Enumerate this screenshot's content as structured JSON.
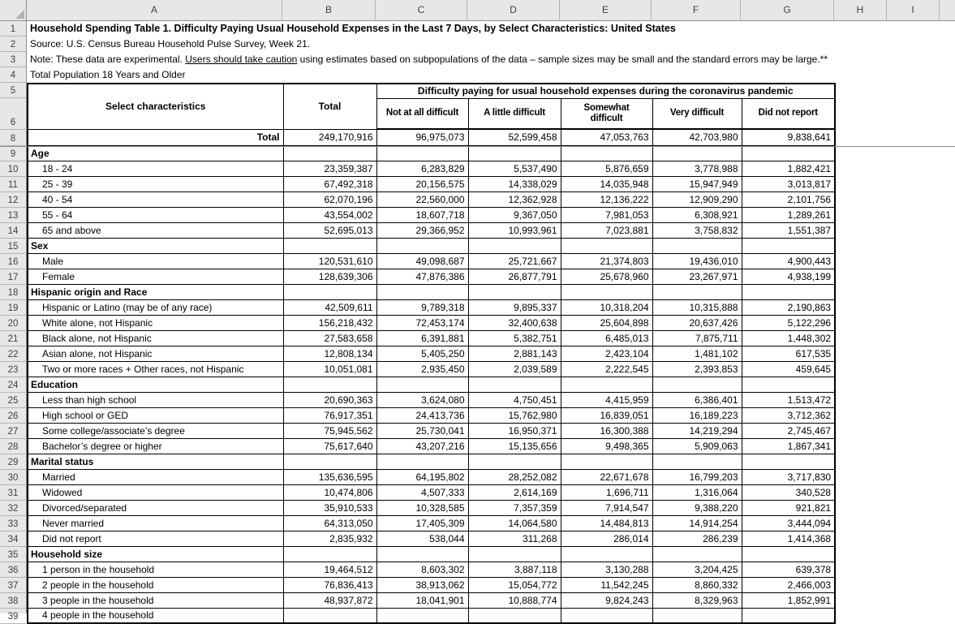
{
  "grid": {
    "columns": [
      "A",
      "B",
      "C",
      "D",
      "E",
      "F",
      "G",
      "H",
      "I"
    ],
    "row_numbers": [
      "1",
      "2",
      "3",
      "4",
      "5",
      "6",
      "8",
      "9",
      "10",
      "11",
      "12",
      "13",
      "14",
      "15",
      "16",
      "17",
      "18",
      "19",
      "20",
      "21",
      "22",
      "23",
      "24",
      "25",
      "26",
      "27",
      "28",
      "29",
      "30",
      "31",
      "32",
      "33",
      "34",
      "35",
      "36",
      "37",
      "38",
      "39"
    ]
  },
  "titles": {
    "line1": "Household Spending Table 1. Difficulty Paying Usual Household Expenses in the Last 7 Days, by Select Characteristics: United States",
    "line2": "Source: U.S. Census Bureau Household Pulse Survey, Week 21.",
    "note_prefix": "Note: These data are experimental. ",
    "note_underlined": "Users should take caution",
    "note_suffix": " using estimates based on subpopulations of the data – sample sizes may be small and the standard errors may be large.**",
    "line4": "Total Population 18 Years and Older"
  },
  "table": {
    "header": {
      "select_characteristics": "Select characteristics",
      "total": "Total",
      "difficulty_span": "Difficulty paying for usual household expenses during the coronavirus pandemic",
      "sub_headers": [
        "Not at all difficult",
        "A little difficult",
        "Somewhat difficult",
        "Very difficult",
        "Did not report"
      ]
    },
    "rows": [
      {
        "row": 8,
        "type": "total",
        "label": "Total",
        "values": [
          "249,170,916",
          "96,975,073",
          "52,599,458",
          "47,053,763",
          "42,703,980",
          "9,838,641"
        ]
      },
      {
        "row": 9,
        "type": "section",
        "label": "Age",
        "values": null
      },
      {
        "row": 10,
        "type": "data",
        "label": "18 - 24",
        "values": [
          "23,359,387",
          "6,283,829",
          "5,537,490",
          "5,876,659",
          "3,778,988",
          "1,882,421"
        ]
      },
      {
        "row": 11,
        "type": "data",
        "label": "25 - 39",
        "values": [
          "67,492,318",
          "20,156,575",
          "14,338,029",
          "14,035,948",
          "15,947,949",
          "3,013,817"
        ]
      },
      {
        "row": 12,
        "type": "data",
        "label": "40 - 54",
        "values": [
          "62,070,196",
          "22,560,000",
          "12,362,928",
          "12,136,222",
          "12,909,290",
          "2,101,756"
        ]
      },
      {
        "row": 13,
        "type": "data",
        "label": "55 - 64",
        "values": [
          "43,554,002",
          "18,607,718",
          "9,367,050",
          "7,981,053",
          "6,308,921",
          "1,289,261"
        ]
      },
      {
        "row": 14,
        "type": "data",
        "label": "65 and above",
        "values": [
          "52,695,013",
          "29,366,952",
          "10,993,961",
          "7,023,881",
          "3,758,832",
          "1,551,387"
        ]
      },
      {
        "row": 15,
        "type": "section",
        "label": "Sex",
        "values": null
      },
      {
        "row": 16,
        "type": "data",
        "label": "Male",
        "values": [
          "120,531,610",
          "49,098,687",
          "25,721,667",
          "21,374,803",
          "19,436,010",
          "4,900,443"
        ]
      },
      {
        "row": 17,
        "type": "data",
        "label": "Female",
        "values": [
          "128,639,306",
          "47,876,386",
          "26,877,791",
          "25,678,960",
          "23,267,971",
          "4,938,199"
        ]
      },
      {
        "row": 18,
        "type": "section",
        "label": "Hispanic origin and Race",
        "values": null
      },
      {
        "row": 19,
        "type": "data",
        "label": "Hispanic or Latino (may be of any race)",
        "values": [
          "42,509,611",
          "9,789,318",
          "9,895,337",
          "10,318,204",
          "10,315,888",
          "2,190,863"
        ]
      },
      {
        "row": 20,
        "type": "data",
        "label": "White alone, not Hispanic",
        "values": [
          "156,218,432",
          "72,453,174",
          "32,400,638",
          "25,604,898",
          "20,637,426",
          "5,122,296"
        ]
      },
      {
        "row": 21,
        "type": "data",
        "label": "Black alone, not Hispanic",
        "values": [
          "27,583,658",
          "6,391,881",
          "5,382,751",
          "6,485,013",
          "7,875,711",
          "1,448,302"
        ]
      },
      {
        "row": 22,
        "type": "data",
        "label": "Asian alone, not Hispanic",
        "values": [
          "12,808,134",
          "5,405,250",
          "2,881,143",
          "2,423,104",
          "1,481,102",
          "617,535"
        ]
      },
      {
        "row": 23,
        "type": "data",
        "label": "Two or more races + Other races, not Hispanic",
        "values": [
          "10,051,081",
          "2,935,450",
          "2,039,589",
          "2,222,545",
          "2,393,853",
          "459,645"
        ]
      },
      {
        "row": 24,
        "type": "section",
        "label": "Education",
        "values": null
      },
      {
        "row": 25,
        "type": "data",
        "label": "Less than high school",
        "values": [
          "20,690,363",
          "3,624,080",
          "4,750,451",
          "4,415,959",
          "6,386,401",
          "1,513,472"
        ]
      },
      {
        "row": 26,
        "type": "data",
        "label": "High school or GED",
        "values": [
          "76,917,351",
          "24,413,736",
          "15,762,980",
          "16,839,051",
          "16,189,223",
          "3,712,362"
        ]
      },
      {
        "row": 27,
        "type": "data",
        "label": "Some college/associate’s degree",
        "values": [
          "75,945,562",
          "25,730,041",
          "16,950,371",
          "16,300,388",
          "14,219,294",
          "2,745,467"
        ]
      },
      {
        "row": 28,
        "type": "data",
        "label": "Bachelor’s degree or higher",
        "values": [
          "75,617,640",
          "43,207,216",
          "15,135,656",
          "9,498,365",
          "5,909,063",
          "1,867,341"
        ]
      },
      {
        "row": 29,
        "type": "section",
        "label": "Marital status",
        "values": null
      },
      {
        "row": 30,
        "type": "data",
        "label": "Married",
        "values": [
          "135,636,595",
          "64,195,802",
          "28,252,082",
          "22,671,678",
          "16,799,203",
          "3,717,830"
        ]
      },
      {
        "row": 31,
        "type": "data",
        "label": "Widowed",
        "values": [
          "10,474,806",
          "4,507,333",
          "2,614,169",
          "1,696,711",
          "1,316,064",
          "340,528"
        ]
      },
      {
        "row": 32,
        "type": "data",
        "label": "Divorced/separated",
        "values": [
          "35,910,533",
          "10,328,585",
          "7,357,359",
          "7,914,547",
          "9,388,220",
          "921,821"
        ]
      },
      {
        "row": 33,
        "type": "data",
        "label": "Never married",
        "values": [
          "64,313,050",
          "17,405,309",
          "14,064,580",
          "14,484,813",
          "14,914,254",
          "3,444,094"
        ]
      },
      {
        "row": 34,
        "type": "data",
        "label": "Did not report",
        "values": [
          "2,835,932",
          "538,044",
          "311,268",
          "286,014",
          "286,239",
          "1,414,368"
        ]
      },
      {
        "row": 35,
        "type": "section",
        "label": "Household size",
        "values": null
      },
      {
        "row": 36,
        "type": "data",
        "label": "1 person in the household",
        "values": [
          "19,464,512",
          "8,603,302",
          "3,887,118",
          "3,130,288",
          "3,204,425",
          "639,378"
        ]
      },
      {
        "row": 37,
        "type": "data",
        "label": "2 people in the household",
        "values": [
          "76,836,413",
          "38,913,062",
          "15,054,772",
          "11,542,245",
          "8,860,332",
          "2,466,003"
        ]
      },
      {
        "row": 38,
        "type": "data",
        "label": "3 people in the household",
        "values": [
          "48,937,872",
          "18,041,901",
          "10,888,774",
          "9,824,243",
          "8,329,963",
          "1,852,991"
        ]
      },
      {
        "row": 39,
        "type": "data",
        "label": "4 people in the household",
        "values": [
          "",
          "",
          "",
          "",
          "",
          ""
        ]
      }
    ]
  },
  "colors": {
    "header_fill": "#e7e7e7",
    "header_border": "#b5b5b5",
    "header_divider": "#8e8e8e",
    "freeze_line": "#8c8c8c",
    "grid_border": "#000000"
  }
}
